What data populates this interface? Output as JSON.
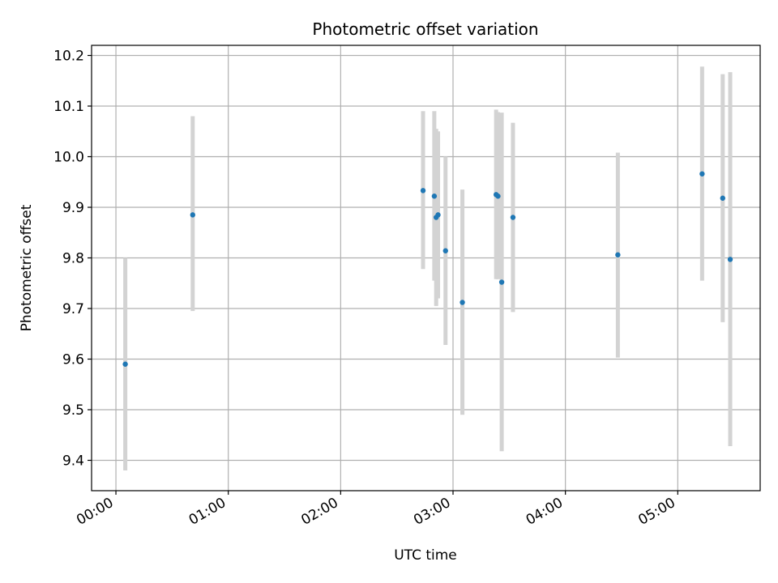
{
  "chart_data": {
    "type": "scatter",
    "title": "Photometric offset variation",
    "xlabel": "UTC time",
    "ylabel": "Photometric offset",
    "x_ticks": [
      "00:00",
      "01:00",
      "02:00",
      "03:00",
      "04:00",
      "05:00"
    ],
    "y_ticks": [
      "9.4",
      "9.5",
      "9.6",
      "9.7",
      "9.8",
      "9.9",
      "10.0",
      "10.1",
      "10.2"
    ],
    "xlim": [
      "23:47",
      "05:44"
    ],
    "ylim": [
      9.34,
      10.22
    ],
    "grid": true,
    "marker_color": "#1f77b4",
    "errorbar_color": "#d3d3d3",
    "points": [
      {
        "x": "00:05",
        "y": 9.59,
        "ylow": 9.38,
        "yhigh": 9.8
      },
      {
        "x": "00:41",
        "y": 9.885,
        "ylow": 9.695,
        "yhigh": 10.08
      },
      {
        "x": "02:44",
        "y": 9.933,
        "ylow": 9.778,
        "yhigh": 10.09
      },
      {
        "x": "02:50",
        "y": 9.922,
        "ylow": 9.755,
        "yhigh": 10.09
      },
      {
        "x": "02:51",
        "y": 9.88,
        "ylow": 9.705,
        "yhigh": 10.055
      },
      {
        "x": "02:52",
        "y": 9.885,
        "ylow": 9.72,
        "yhigh": 10.05
      },
      {
        "x": "02:56",
        "y": 9.814,
        "ylow": 9.628,
        "yhigh": 10.0
      },
      {
        "x": "03:05",
        "y": 9.712,
        "ylow": 9.49,
        "yhigh": 9.935
      },
      {
        "x": "03:23",
        "y": 9.925,
        "ylow": 9.758,
        "yhigh": 10.093
      },
      {
        "x": "03:24",
        "y": 9.922,
        "ylow": 9.758,
        "yhigh": 10.088
      },
      {
        "x": "03:26",
        "y": 9.752,
        "ylow": 9.418,
        "yhigh": 10.087
      },
      {
        "x": "03:32",
        "y": 9.88,
        "ylow": 9.693,
        "yhigh": 10.067
      },
      {
        "x": "04:28",
        "y": 9.806,
        "ylow": 9.603,
        "yhigh": 10.008
      },
      {
        "x": "05:13",
        "y": 9.966,
        "ylow": 9.755,
        "yhigh": 10.178
      },
      {
        "x": "05:24",
        "y": 9.918,
        "ylow": 9.673,
        "yhigh": 10.163
      },
      {
        "x": "05:28",
        "y": 9.797,
        "ylow": 9.428,
        "yhigh": 10.167
      }
    ]
  }
}
